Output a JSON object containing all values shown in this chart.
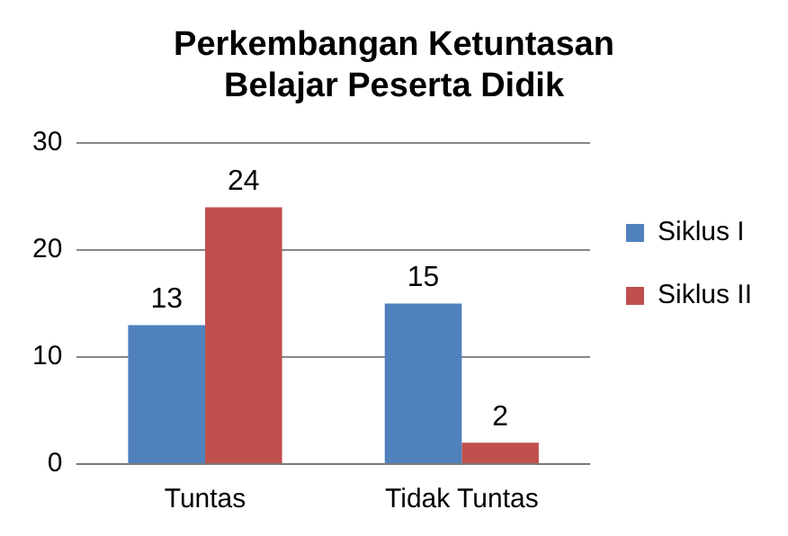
{
  "chart_data": {
    "type": "bar",
    "title": "Perkembangan Ketuntasan Belajar Peserta Didik",
    "categories": [
      "Tuntas",
      "Tidak Tuntas"
    ],
    "series": [
      {
        "name": "Siklus I",
        "color": "#4f81bd",
        "values": [
          13,
          15
        ]
      },
      {
        "name": "Siklus II",
        "color": "#c0504d",
        "values": [
          24,
          2
        ]
      }
    ],
    "ylim": [
      0,
      30
    ],
    "yticks": [
      0,
      10,
      20,
      30
    ],
    "grid": "y",
    "legend": "right",
    "data_labels": true
  }
}
